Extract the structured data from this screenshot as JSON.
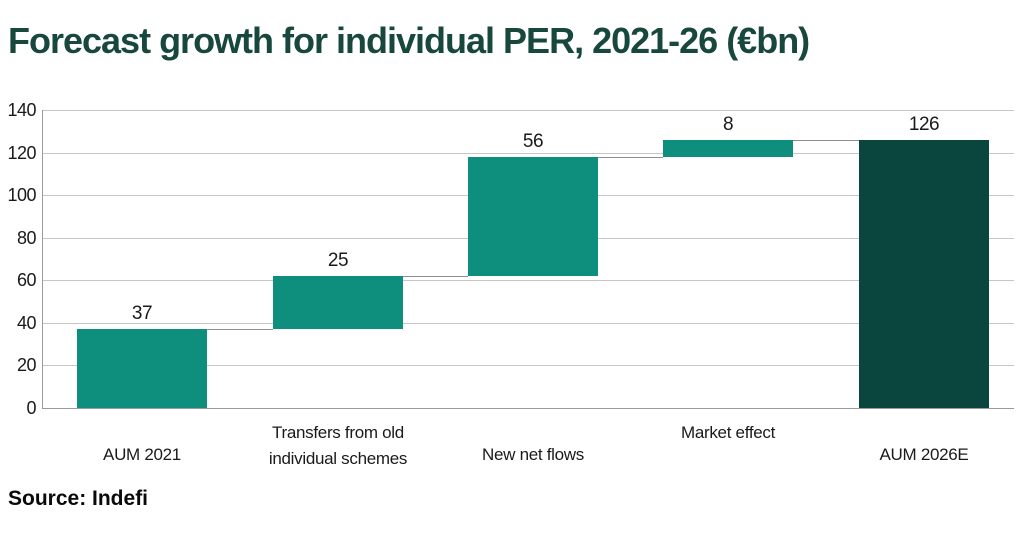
{
  "page": {
    "title": "Forecast growth for individual PER, 2021-26 (€bn)",
    "source": "Source: Indefi"
  },
  "colors": {
    "bar_increment": "#0e8e7d",
    "bar_total": "#0b463e",
    "title_text": "#17473d",
    "grid_line": "#c6c6c6",
    "axis_line": "#9b9b9b",
    "connector_line": "#8f8f8f",
    "label_text": "#1a1a1a",
    "background": "#ffffff"
  },
  "chart_data": {
    "type": "bar",
    "subtype": "waterfall",
    "title": "Forecast growth for individual PER, 2021-26 (€bn)",
    "source": "Source: Indefi",
    "categories": [
      "AUM 2021",
      "Transfers from old individual schemes",
      "New net flows",
      "Market effect",
      "AUM 2026E"
    ],
    "category_lines": [
      [
        "AUM 2021"
      ],
      [
        "Transfers from old",
        "individual schemes"
      ],
      [
        "New net flows"
      ],
      [
        "Market effect"
      ],
      [
        "AUM 2026E"
      ]
    ],
    "category_row": [
      "bottom",
      "top",
      "bottom",
      "top",
      "bottom"
    ],
    "values": [
      37,
      25,
      56,
      8,
      126
    ],
    "segment_start": [
      0,
      37,
      62,
      118,
      0
    ],
    "segment_end": [
      37,
      62,
      118,
      126,
      126
    ],
    "bar_roles": [
      "increment",
      "increment",
      "increment",
      "increment",
      "total"
    ],
    "data_labels": [
      "37",
      "25",
      "56",
      "8",
      "126"
    ],
    "yticks": [
      0,
      20,
      40,
      60,
      80,
      100,
      120,
      140
    ],
    "ylim": [
      0,
      140
    ],
    "xlabel": "",
    "ylabel": "",
    "grid": true,
    "legend": false
  }
}
